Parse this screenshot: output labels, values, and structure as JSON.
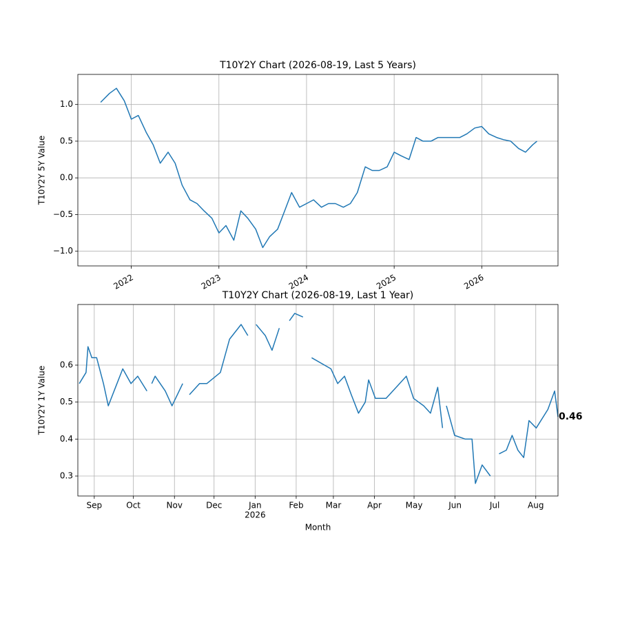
{
  "chart_data": [
    {
      "type": "line",
      "title": "T10Y2Y Chart (2026-08-19, Last 5 Years)",
      "ylabel": "T10Y2Y 5Y Value",
      "xlim": [
        2021.39,
        2026.87
      ],
      "ylim": [
        -1.2,
        1.41
      ],
      "grid": true,
      "xtick_rotation": 30,
      "xticks": [
        2022,
        2023,
        2024,
        2025,
        2026
      ],
      "yticks": [
        {
          "value": -1,
          "label": "−1.0"
        },
        {
          "value": -0.5,
          "label": "−0.5"
        },
        {
          "value": 0,
          "label": "0.0"
        },
        {
          "value": 0.5,
          "label": "0.5"
        },
        {
          "value": 1,
          "label": "1.0"
        }
      ],
      "x": [
        2021.65,
        2021.75,
        2021.83,
        2021.92,
        2022.0,
        2022.08,
        2022.17,
        2022.25,
        2022.33,
        2022.42,
        2022.5,
        2022.58,
        2022.67,
        2022.75,
        2022.83,
        2022.92,
        2023.0,
        2023.08,
        2023.17,
        2023.25,
        2023.33,
        2023.42,
        2023.5,
        2023.58,
        2023.67,
        2023.75,
        2023.83,
        2023.92,
        2024.0,
        2024.08,
        2024.17,
        2024.25,
        2024.33,
        2024.42,
        2024.5,
        2024.58,
        2024.67,
        2024.75,
        2024.83,
        2024.92,
        2025.0,
        2025.08,
        2025.17,
        2025.25,
        2025.33,
        2025.42,
        2025.5,
        2025.58,
        2025.67,
        2025.75,
        2025.83,
        2025.92,
        2026.0,
        2026.08,
        2026.17,
        2026.25,
        2026.33,
        2026.42,
        2026.5,
        2026.58,
        2026.63
      ],
      "series": [
        {
          "color": "#1f77b4",
          "values": [
            1.03,
            1.15,
            1.22,
            1.05,
            0.8,
            0.85,
            0.62,
            0.45,
            0.2,
            0.35,
            0.2,
            -0.1,
            -0.3,
            -0.35,
            -0.45,
            -0.55,
            -0.75,
            -0.65,
            -0.85,
            -0.45,
            -0.55,
            -0.7,
            -0.95,
            -0.8,
            -0.7,
            -0.45,
            -0.2,
            -0.4,
            -0.35,
            -0.3,
            -0.4,
            -0.35,
            -0.35,
            -0.4,
            -0.35,
            -0.2,
            0.15,
            0.1,
            0.1,
            0.15,
            0.35,
            0.3,
            0.25,
            0.55,
            0.5,
            0.5,
            0.55,
            0.55,
            0.55,
            0.55,
            0.6,
            0.68,
            0.7,
            0.6,
            0.55,
            0.52,
            0.5,
            0.4,
            0.35,
            0.45,
            0.5
          ]
        }
      ]
    },
    {
      "type": "line",
      "title": "T10Y2Y Chart (2026-08-19, Last 1 Year)",
      "ylabel": "T10Y2Y 1Y Value",
      "xlabel": "Month",
      "x_year_label": "2026",
      "xlim": [
        2025.633,
        2026.627
      ],
      "ylim": [
        0.246,
        0.764
      ],
      "grid": true,
      "annotation": "0.46",
      "xticks": [
        {
          "value": 2025.667,
          "label": "Sep"
        },
        {
          "value": 2025.748,
          "label": "Oct"
        },
        {
          "value": 2025.833,
          "label": "Nov"
        },
        {
          "value": 2025.915,
          "label": "Dec"
        },
        {
          "value": 2026.0,
          "label": "Jan"
        },
        {
          "value": 2026.085,
          "label": "Feb"
        },
        {
          "value": 2026.162,
          "label": "Mar"
        },
        {
          "value": 2026.247,
          "label": "Apr"
        },
        {
          "value": 2026.329,
          "label": "May"
        },
        {
          "value": 2026.414,
          "label": "Jun"
        },
        {
          "value": 2026.496,
          "label": "Jul"
        },
        {
          "value": 2026.581,
          "label": "Aug"
        }
      ],
      "yticks": [
        0.3,
        0.4,
        0.5,
        0.6
      ],
      "x": [
        2025.636,
        2025.65,
        2025.654,
        2025.662,
        2025.672,
        2025.686,
        2025.696,
        2025.711,
        2025.726,
        2025.743,
        2025.757,
        2025.776,
        2025.78,
        2025.786,
        2025.793,
        2025.814,
        2025.828,
        2025.85,
        2025.854,
        2025.864,
        2025.885,
        2025.9,
        2025.928,
        2025.947,
        2025.971,
        2025.985,
        2025.995,
        2026.002,
        2026.021,
        2026.035,
        2026.05,
        2026.057,
        2026.071,
        2026.082,
        2026.099,
        2026.107,
        2026.117,
        2026.157,
        2026.171,
        2026.185,
        2026.199,
        2026.214,
        2026.228,
        2026.235,
        2026.249,
        2026.271,
        2026.292,
        2026.313,
        2026.328,
        2026.349,
        2026.363,
        2026.378,
        2026.388,
        2026.392,
        2026.396,
        2026.413,
        2026.435,
        2026.449,
        2026.456,
        2026.47,
        2026.487,
        2026.49,
        2026.505,
        2026.52,
        2026.532,
        2026.544,
        2026.556,
        2026.567,
        2026.582,
        2026.606,
        2026.62,
        2026.627
      ],
      "series": [
        {
          "color": "#1f77b4",
          "values": [
            0.55,
            0.58,
            0.65,
            0.62,
            0.62,
            0.55,
            0.49,
            0.54,
            0.59,
            0.55,
            0.57,
            0.53,
            null,
            0.55,
            0.57,
            0.53,
            0.49,
            0.55,
            null,
            0.52,
            0.55,
            0.55,
            0.58,
            0.67,
            0.71,
            0.68,
            null,
            0.71,
            0.68,
            0.64,
            0.7,
            null,
            0.72,
            0.74,
            0.73,
            null,
            0.62,
            0.59,
            0.55,
            0.57,
            0.52,
            0.47,
            0.5,
            0.56,
            0.51,
            0.51,
            0.54,
            0.57,
            0.51,
            0.49,
            0.47,
            0.54,
            0.43,
            null,
            0.49,
            0.41,
            0.4,
            0.4,
            0.28,
            0.33,
            0.3,
            null,
            0.36,
            0.37,
            0.41,
            0.37,
            0.35,
            0.45,
            0.43,
            0.48,
            0.53,
            0.46
          ]
        }
      ]
    }
  ]
}
